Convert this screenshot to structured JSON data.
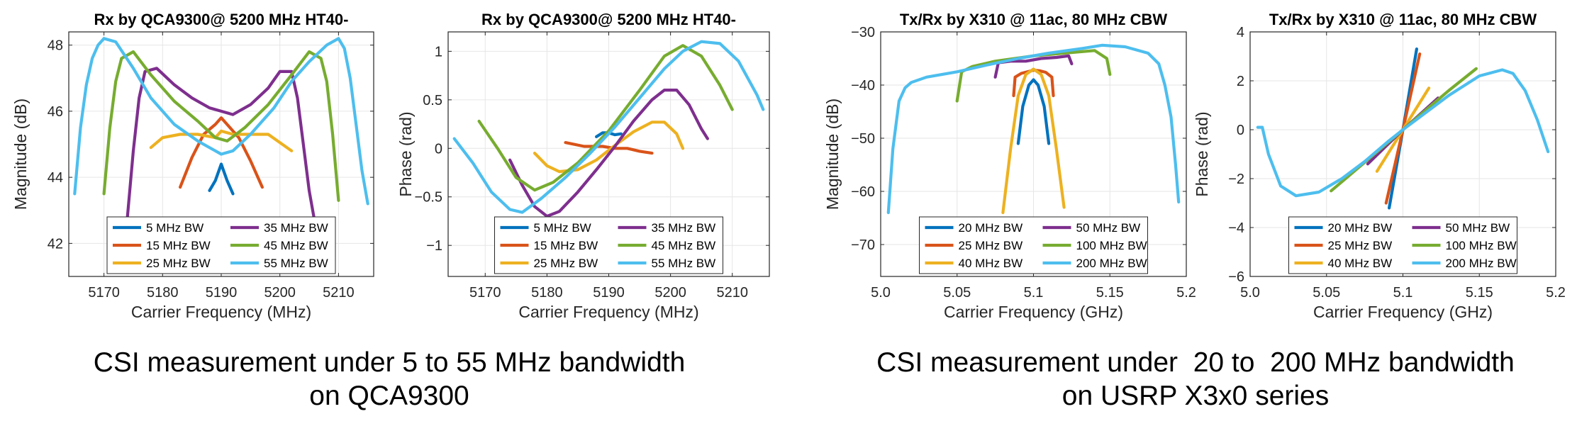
{
  "captions": {
    "left": {
      "line1": "CSI measurement under 5 to 55 MHz bandwidth",
      "line2": "on QCA9300"
    },
    "right": {
      "line1": "CSI measurement under  20 to  200 MHz bandwidth",
      "line2": "on USRP X3x0 series"
    }
  },
  "colors": {
    "c1": "#0072BD",
    "c2": "#D95319",
    "c3": "#EDB120",
    "c4": "#7E2F8E",
    "c5": "#77AC30",
    "c6": "#4DBEEE"
  },
  "chart_data": [
    {
      "type": "line",
      "title": "Rx by QCA9300@ 5200 MHz HT40-",
      "xlabel": "Carrier Frequency (MHz)",
      "ylabel": "Magnitude (dB)",
      "xlim": [
        5164,
        5216
      ],
      "ylim": [
        41,
        48.4
      ],
      "xticks": [
        5170,
        5180,
        5190,
        5200,
        5210
      ],
      "yticks": [
        42,
        44,
        46,
        48
      ],
      "grid": true,
      "legend": "bottom-center",
      "series": [
        {
          "name": "5 MHz BW",
          "color": "c1",
          "x": [
            5188,
            5189,
            5190,
            5191,
            5192
          ],
          "y": [
            43.6,
            43.9,
            44.4,
            43.9,
            43.5
          ]
        },
        {
          "name": "15 MHz BW",
          "color": "c2",
          "x": [
            5183,
            5185,
            5187,
            5189,
            5190,
            5191,
            5193,
            5195,
            5197
          ],
          "y": [
            43.7,
            44.6,
            45.3,
            45.6,
            45.8,
            45.6,
            45.2,
            44.5,
            43.7
          ]
        },
        {
          "name": "25 MHz BW",
          "color": "c3",
          "x": [
            5178,
            5180,
            5183,
            5186,
            5189,
            5190,
            5192,
            5195,
            5198,
            5202
          ],
          "y": [
            44.9,
            45.2,
            45.3,
            45.3,
            45.2,
            45.4,
            45.3,
            45.3,
            45.3,
            44.8
          ]
        },
        {
          "name": "35 MHz BW",
          "color": "c4",
          "x": [
            5174,
            5175,
            5176,
            5177,
            5179,
            5182,
            5185,
            5188,
            5190,
            5192,
            5195,
            5198,
            5200,
            5202,
            5203,
            5204,
            5205,
            5206
          ],
          "y": [
            42.8,
            44.8,
            46.4,
            47.2,
            47.3,
            46.8,
            46.4,
            46.1,
            46.0,
            45.9,
            46.2,
            46.7,
            47.2,
            47.2,
            46.4,
            45.0,
            43.6,
            42.6
          ]
        },
        {
          "name": "45 MHz BW",
          "color": "c5",
          "x": [
            5170,
            5171,
            5172,
            5173,
            5175,
            5178,
            5182,
            5186,
            5189,
            5191,
            5194,
            5198,
            5202,
            5205,
            5207,
            5208,
            5209,
            5210
          ],
          "y": [
            43.5,
            45.5,
            46.9,
            47.6,
            47.8,
            47.1,
            46.3,
            45.7,
            45.2,
            45.1,
            45.5,
            46.2,
            47.1,
            47.8,
            47.6,
            46.9,
            45.3,
            43.3
          ]
        },
        {
          "name": "55 MHz BW",
          "color": "c6",
          "x": [
            5165,
            5166,
            5167,
            5168,
            5169,
            5170,
            5172,
            5175,
            5178,
            5182,
            5186,
            5189,
            5190,
            5192,
            5195,
            5199,
            5202,
            5205,
            5208,
            5210,
            5211,
            5212,
            5213,
            5214,
            5215
          ],
          "y": [
            43.5,
            45.5,
            46.8,
            47.6,
            48.0,
            48.2,
            48.1,
            47.3,
            46.4,
            45.6,
            45.1,
            44.8,
            44.7,
            44.8,
            45.3,
            46.1,
            46.9,
            47.5,
            48.0,
            48.2,
            47.9,
            47.0,
            45.6,
            44.2,
            43.2
          ]
        }
      ]
    },
    {
      "type": "line",
      "title": "Rx by QCA9300@ 5200 MHz HT40-",
      "xlabel": "Carrier Frequency (MHz)",
      "ylabel": "Phase (rad)",
      "xlim": [
        5164,
        5216
      ],
      "ylim": [
        -1.32,
        1.2
      ],
      "xticks": [
        5170,
        5180,
        5190,
        5200,
        5210
      ],
      "yticks": [
        -1,
        -0.5,
        0,
        0.5,
        1
      ],
      "grid": true,
      "legend": "bottom-center",
      "series": [
        {
          "name": "5 MHz BW",
          "color": "c1",
          "x": [
            5188,
            5189,
            5190,
            5191,
            5192
          ],
          "y": [
            0.12,
            0.16,
            0.16,
            0.14,
            0.15
          ]
        },
        {
          "name": "15 MHz BW",
          "color": "c2",
          "x": [
            5183,
            5186,
            5189,
            5191,
            5193,
            5195,
            5197
          ],
          "y": [
            0.06,
            0.02,
            0.02,
            0.0,
            0.0,
            -0.03,
            -0.05
          ]
        },
        {
          "name": "25 MHz BW",
          "color": "c3",
          "x": [
            5178,
            5180,
            5182,
            5185,
            5188,
            5191,
            5194,
            5197,
            5199,
            5201,
            5202
          ],
          "y": [
            -0.05,
            -0.18,
            -0.24,
            -0.22,
            -0.12,
            0.03,
            0.17,
            0.27,
            0.27,
            0.15,
            0.0
          ]
        },
        {
          "name": "35 MHz BW",
          "color": "c4",
          "x": [
            5174,
            5176,
            5178,
            5180,
            5182,
            5185,
            5188,
            5191,
            5194,
            5197,
            5199,
            5201,
            5203,
            5205,
            5206
          ],
          "y": [
            -0.12,
            -0.38,
            -0.6,
            -0.7,
            -0.65,
            -0.45,
            -0.22,
            0.02,
            0.28,
            0.5,
            0.6,
            0.6,
            0.45,
            0.2,
            0.1
          ]
        },
        {
          "name": "45 MHz BW",
          "color": "c5",
          "x": [
            5169,
            5172,
            5175,
            5178,
            5181,
            5185,
            5190,
            5195,
            5199,
            5202,
            5205,
            5208,
            5210
          ],
          "y": [
            0.28,
            0.0,
            -0.3,
            -0.43,
            -0.35,
            -0.15,
            0.18,
            0.6,
            0.95,
            1.06,
            0.95,
            0.65,
            0.4
          ]
        },
        {
          "name": "55 MHz BW",
          "color": "c6",
          "x": [
            5165,
            5168,
            5171,
            5174,
            5176,
            5179,
            5183,
            5187,
            5191,
            5195,
            5199,
            5202,
            5205,
            5208,
            5211,
            5214,
            5215
          ],
          "y": [
            0.1,
            -0.15,
            -0.45,
            -0.63,
            -0.66,
            -0.52,
            -0.3,
            -0.05,
            0.22,
            0.52,
            0.82,
            1.0,
            1.1,
            1.08,
            0.9,
            0.55,
            0.4
          ]
        }
      ]
    },
    {
      "type": "line",
      "title": "Tx/Rx by X310 @ 11ac, 80 MHz CBW",
      "xlabel": "Carrier Frequency (GHz)",
      "ylabel": "Magnitude (dB)",
      "xlim": [
        5.0,
        5.2
      ],
      "ylim": [
        -76,
        -30
      ],
      "xticks": [
        5.0,
        5.05,
        5.1,
        5.15,
        5.2
      ],
      "xticklabels": [
        "5.0",
        "5.05",
        "5.1",
        "5.15",
        "5.2"
      ],
      "yticks": [
        -70,
        -60,
        -50,
        -40,
        -30
      ],
      "grid": true,
      "legend": "bottom-center",
      "series": [
        {
          "name": "20 MHz BW",
          "color": "c1",
          "x": [
            5.09,
            5.093,
            5.097,
            5.1,
            5.103,
            5.107,
            5.11
          ],
          "y": [
            -51,
            -44,
            -40,
            -39,
            -40,
            -44,
            -51
          ]
        },
        {
          "name": "25 MHz BW",
          "color": "c2",
          "x": [
            5.087,
            5.088,
            5.092,
            5.096,
            5.1,
            5.104,
            5.108,
            5.112,
            5.113
          ],
          "y": [
            -42,
            -38.5,
            -37.8,
            -37.5,
            -37.2,
            -37.3,
            -37.6,
            -38.5,
            -42
          ]
        },
        {
          "name": "40 MHz BW",
          "color": "c3",
          "x": [
            5.08,
            5.085,
            5.09,
            5.095,
            5.1,
            5.105,
            5.11,
            5.115,
            5.12
          ],
          "y": [
            -64,
            -52,
            -42,
            -38,
            -37,
            -38,
            -42,
            -52,
            -63
          ]
        },
        {
          "name": "50 MHz BW",
          "color": "c4",
          "x": [
            5.075,
            5.077,
            5.085,
            5.095,
            5.105,
            5.115,
            5.123,
            5.125
          ],
          "y": [
            -38.5,
            -35.8,
            -35.5,
            -35.5,
            -35,
            -34.8,
            -34.5,
            -36
          ]
        },
        {
          "name": "100 MHz BW",
          "color": "c5",
          "x": [
            5.05,
            5.053,
            5.06,
            5.075,
            5.1,
            5.12,
            5.14,
            5.148,
            5.15
          ],
          "y": [
            -43,
            -37.5,
            -36.5,
            -35.5,
            -34.5,
            -34,
            -33.5,
            -35,
            -38
          ]
        },
        {
          "name": "200 MHz BW",
          "color": "c6",
          "x": [
            5.005,
            5.008,
            5.012,
            5.016,
            5.02,
            5.03,
            5.05,
            5.07,
            5.09,
            5.11,
            5.13,
            5.145,
            5.16,
            5.175,
            5.182,
            5.186,
            5.19,
            5.193,
            5.195
          ],
          "y": [
            -64,
            -52,
            -43,
            -40.5,
            -39.5,
            -38.5,
            -37.5,
            -36.2,
            -35,
            -34,
            -33.2,
            -32.5,
            -32.8,
            -34,
            -36,
            -40,
            -46,
            -55,
            -62
          ]
        }
      ]
    },
    {
      "type": "line",
      "title": "Tx/Rx by X310 @ 11ac, 80 MHz CBW",
      "xlabel": "Carrier Frequency (GHz)",
      "ylabel": "Phase (rad)",
      "xlim": [
        5.0,
        5.2
      ],
      "ylim": [
        -6,
        4
      ],
      "xticks": [
        5.0,
        5.05,
        5.1,
        5.15,
        5.2
      ],
      "xticklabels": [
        "5.0",
        "5.05",
        "5.1",
        "5.15",
        "5.2"
      ],
      "yticks": [
        -6,
        -4,
        -2,
        0,
        2,
        4
      ],
      "grid": true,
      "legend": "bottom-center",
      "series": [
        {
          "name": "20 MHz BW",
          "color": "c1",
          "x": [
            5.091,
            5.1,
            5.109
          ],
          "y": [
            -3.2,
            0.0,
            3.3
          ]
        },
        {
          "name": "25 MHz BW",
          "color": "c2",
          "x": [
            5.089,
            5.1,
            5.111
          ],
          "y": [
            -3.0,
            0.0,
            3.1
          ]
        },
        {
          "name": "40 MHz BW",
          "color": "c3",
          "x": [
            5.083,
            5.1,
            5.117
          ],
          "y": [
            -1.7,
            0.0,
            1.7
          ]
        },
        {
          "name": "50 MHz BW",
          "color": "c4",
          "x": [
            5.077,
            5.1,
            5.123
          ],
          "y": [
            -1.4,
            0.0,
            1.3
          ]
        },
        {
          "name": "100 MHz BW",
          "color": "c5",
          "x": [
            5.053,
            5.07,
            5.085,
            5.1,
            5.115,
            5.13,
            5.148
          ],
          "y": [
            -2.5,
            -1.6,
            -0.8,
            0.0,
            0.8,
            1.6,
            2.5
          ]
        },
        {
          "name": "200 MHz BW",
          "color": "c6",
          "x": [
            5.005,
            5.008,
            5.012,
            5.02,
            5.03,
            5.045,
            5.06,
            5.075,
            5.09,
            5.1,
            5.115,
            5.13,
            5.15,
            5.165,
            5.172,
            5.18,
            5.188,
            5.195
          ],
          "y": [
            0.1,
            0.1,
            -1.0,
            -2.3,
            -2.7,
            -2.55,
            -2.0,
            -1.3,
            -0.5,
            0.0,
            0.7,
            1.4,
            2.2,
            2.45,
            2.3,
            1.6,
            0.4,
            -0.9
          ]
        }
      ]
    }
  ]
}
